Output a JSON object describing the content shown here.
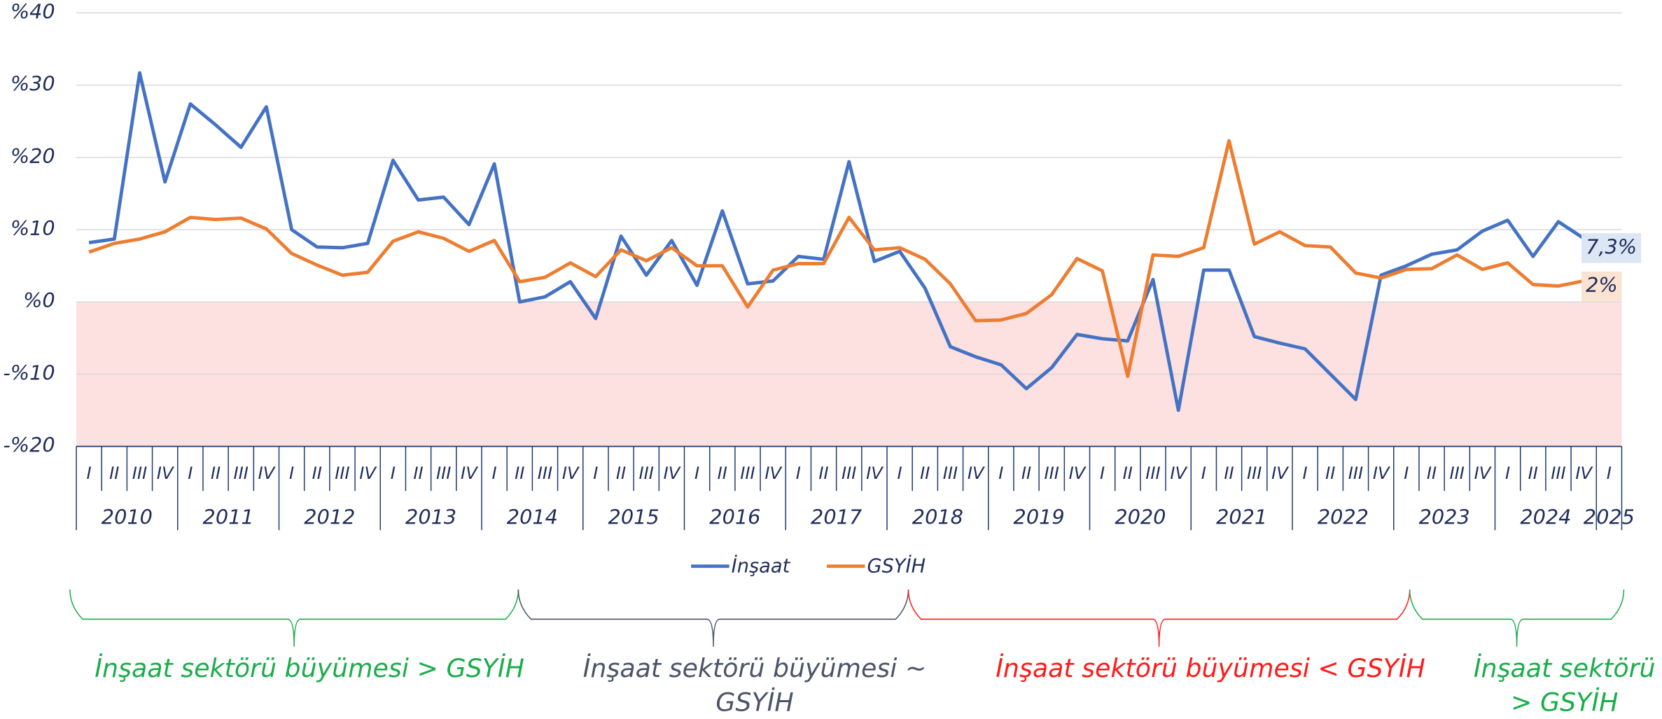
{
  "chart_data": {
    "type": "line",
    "categories": [
      "I",
      "II",
      "III",
      "IV",
      "I",
      "II",
      "III",
      "IV",
      "I",
      "II",
      "III",
      "IV",
      "I",
      "II",
      "III",
      "IV",
      "I",
      "II",
      "III",
      "IV",
      "I",
      "II",
      "III",
      "IV",
      "I",
      "II",
      "III",
      "IV",
      "I",
      "II",
      "III",
      "IV",
      "I",
      "II",
      "III",
      "IV",
      "I",
      "II",
      "III",
      "IV",
      "I",
      "II",
      "III",
      "IV",
      "I",
      "II",
      "III",
      "IV",
      "I",
      "II",
      "III",
      "IV",
      "I",
      "II",
      "III",
      "IV",
      "I",
      "II",
      "III",
      "IV",
      "I"
    ],
    "years": [
      "2010",
      "2011",
      "2012",
      "2013",
      "2014",
      "2015",
      "2016",
      "2017",
      "2018",
      "2019",
      "2020",
      "2021",
      "2022",
      "2023",
      "2024",
      "2025"
    ],
    "ylim": [
      -20,
      40
    ],
    "yticks": [
      {
        "value": -20,
        "label": "-%20"
      },
      {
        "value": -10,
        "label": "-%10"
      },
      {
        "value": 0,
        "label": "%0"
      },
      {
        "value": 10,
        "label": "%10"
      },
      {
        "value": 20,
        "label": "%20"
      },
      {
        "value": 30,
        "label": "%30"
      },
      {
        "value": 40,
        "label": "%40"
      }
    ],
    "grid": true,
    "negative_fill": "#fde0e0",
    "series": [
      {
        "name": "İnşaat",
        "color": "#4472c4",
        "label_bg": "#dce6f4",
        "values": [
          8.2,
          8.7,
          31.7,
          16.6,
          27.4,
          24.5,
          21.4,
          27.0,
          10.0,
          7.6,
          7.5,
          8.1,
          19.6,
          14.1,
          14.5,
          10.7,
          19.1,
          0,
          0.7,
          2.8,
          -2.3,
          9.1,
          3.7,
          8.5,
          2.3,
          12.6,
          2.5,
          2.9,
          6.3,
          5.9,
          19.4,
          5.6,
          7.0,
          1.9,
          -6.2,
          -7.6,
          -8.7,
          -12.0,
          -9.1,
          -4.5,
          -5.1,
          -5.4,
          3.1,
          -15.0,
          4.4,
          4.4,
          -4.8,
          -5.7,
          -6.5,
          -10.0,
          -13.5,
          3.7,
          5.0,
          6.6,
          7.2,
          9.8,
          11.3,
          6.3,
          11.1,
          8.8,
          7.3
        ],
        "value_labels": [
          null,
          null,
          null,
          null,
          null,
          null,
          null,
          null,
          null,
          null,
          null,
          null,
          null,
          null,
          null,
          null,
          null,
          null,
          null,
          null,
          null,
          null,
          null,
          null,
          null,
          null,
          null,
          null,
          null,
          null,
          null,
          null,
          null,
          null,
          null,
          null,
          null,
          null,
          null,
          null,
          null,
          null,
          null,
          null,
          null,
          null,
          null,
          null,
          null,
          null,
          null,
          null,
          null,
          null,
          null,
          null,
          null,
          null,
          null,
          null,
          "7,3%"
        ]
      },
      {
        "name": "GSYİH",
        "color": "#ed7d31",
        "label_bg": "#fbe3d4",
        "values": [
          6.9,
          8.1,
          8.7,
          9.7,
          11.7,
          11.4,
          11.6,
          10.1,
          6.7,
          5.1,
          3.7,
          4.1,
          8.4,
          9.7,
          8.8,
          7.0,
          8.5,
          2.8,
          3.4,
          5.4,
          3.5,
          7.2,
          5.7,
          7.5,
          5.0,
          5.0,
          -0.7,
          4.4,
          5.3,
          5.3,
          11.7,
          7.2,
          7.5,
          5.9,
          2.5,
          -2.6,
          -2.5,
          -1.6,
          1.0,
          6.0,
          4.3,
          -10.3,
          6.5,
          6.3,
          7.5,
          22.3,
          8.0,
          9.7,
          7.8,
          7.6,
          4.0,
          3.3,
          4.5,
          4.6,
          6.5,
          4.5,
          5.4,
          2.4,
          2.2,
          2.9,
          2.0
        ],
        "value_labels": [
          null,
          null,
          null,
          null,
          null,
          null,
          null,
          null,
          null,
          null,
          null,
          null,
          null,
          null,
          null,
          null,
          null,
          null,
          null,
          null,
          null,
          null,
          null,
          null,
          null,
          null,
          null,
          null,
          null,
          null,
          null,
          null,
          null,
          null,
          null,
          null,
          null,
          null,
          null,
          null,
          null,
          null,
          null,
          null,
          null,
          null,
          null,
          null,
          null,
          null,
          null,
          null,
          null,
          null,
          null,
          null,
          null,
          null,
          null,
          null,
          "2%"
        ]
      }
    ],
    "periods": [
      {
        "lines": [
          "İnşaat sektörü büyümesi > GSYİH"
        ],
        "color": "#1aad4b"
      },
      {
        "lines": [
          "İnşaat sektörü büyümesi ~",
          "GSYİH"
        ],
        "color": "#4a5568"
      },
      {
        "lines": [
          "İnşaat sektörü büyümesi < GSYİH"
        ],
        "color": "#ff1a1a"
      },
      {
        "lines": [
          "İnşaat sektörü",
          "> GSYİH"
        ],
        "color": "#1aad4b"
      }
    ]
  }
}
